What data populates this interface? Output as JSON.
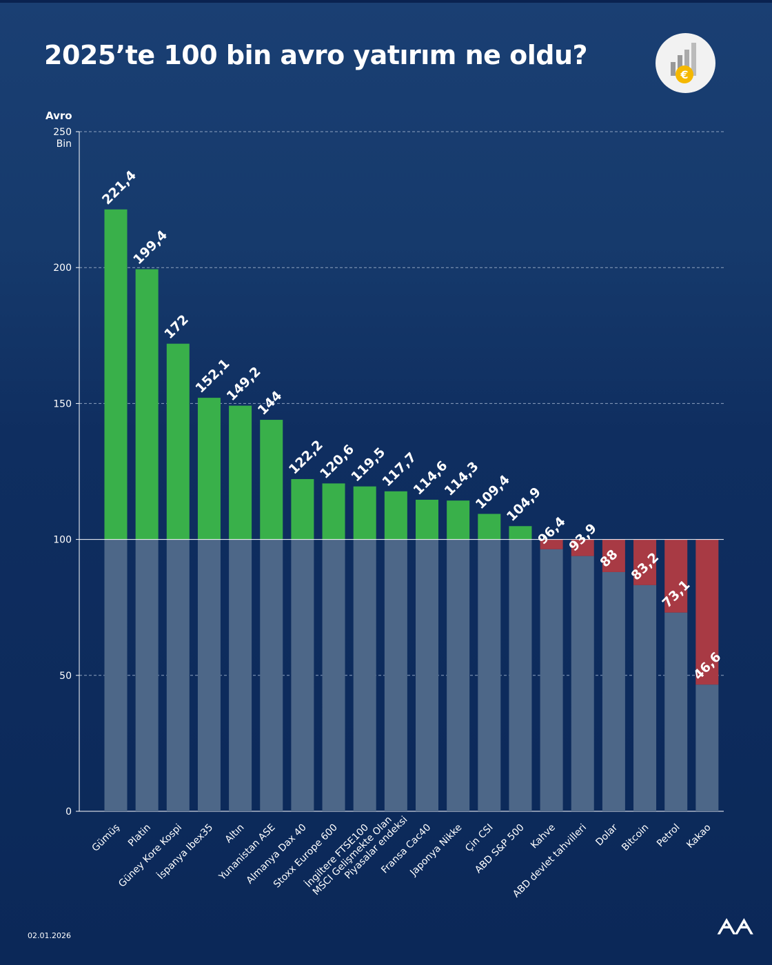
{
  "title": "2025’te 100 bin avro yatırım ne oldu?",
  "date": "02.01.2026",
  "agency_logo": "AA",
  "colors": {
    "background": "#0f2e60",
    "gain": "#39b04a",
    "loss": "#a83a44",
    "base": "#4d6788"
  },
  "chart_data": {
    "type": "bar",
    "title": "2025’te 100 bin avro yatırım ne oldu?",
    "ylabel": "Avro",
    "ylabel_unit": "Bin",
    "ylim": [
      0,
      250
    ],
    "yticks": [
      0,
      50,
      100,
      150,
      200,
      250
    ],
    "baseline": 100,
    "grid": true,
    "categories": [
      "Gümüş",
      "Platin",
      "Güney Kore Kospi",
      "İspanya Ibex35",
      "Altın",
      "Yunanistan ASE",
      "Almanya Dax 40",
      "Stoxx Europe 600",
      "İngiltere FTSE100",
      "MSCI Gelişmekte Olan\nPiyasalar endeksi",
      "Fransa Cac40",
      "Japonya Nikke",
      "Çin CSI",
      "ABD S&P 500",
      "Kahve",
      "ABD devlet tahvilleri",
      "Dolar",
      "Bitcoin",
      "Petrol",
      "Kakao"
    ],
    "values": [
      221.4,
      199.4,
      172,
      152.1,
      149.2,
      144,
      122.2,
      120.6,
      119.5,
      117.7,
      114.6,
      114.3,
      109.4,
      104.9,
      96.4,
      93.9,
      88,
      83.2,
      73.1,
      46.6
    ],
    "value_labels": [
      "221,4",
      "199,4",
      "172",
      "152,1",
      "149,2",
      "144",
      "122,2",
      "120,6",
      "119,5",
      "117,7",
      "114,6",
      "114,3",
      "109,4",
      "104,9",
      "96,4",
      "93,9",
      "88",
      "83,2",
      "73,1",
      "46,6"
    ]
  }
}
